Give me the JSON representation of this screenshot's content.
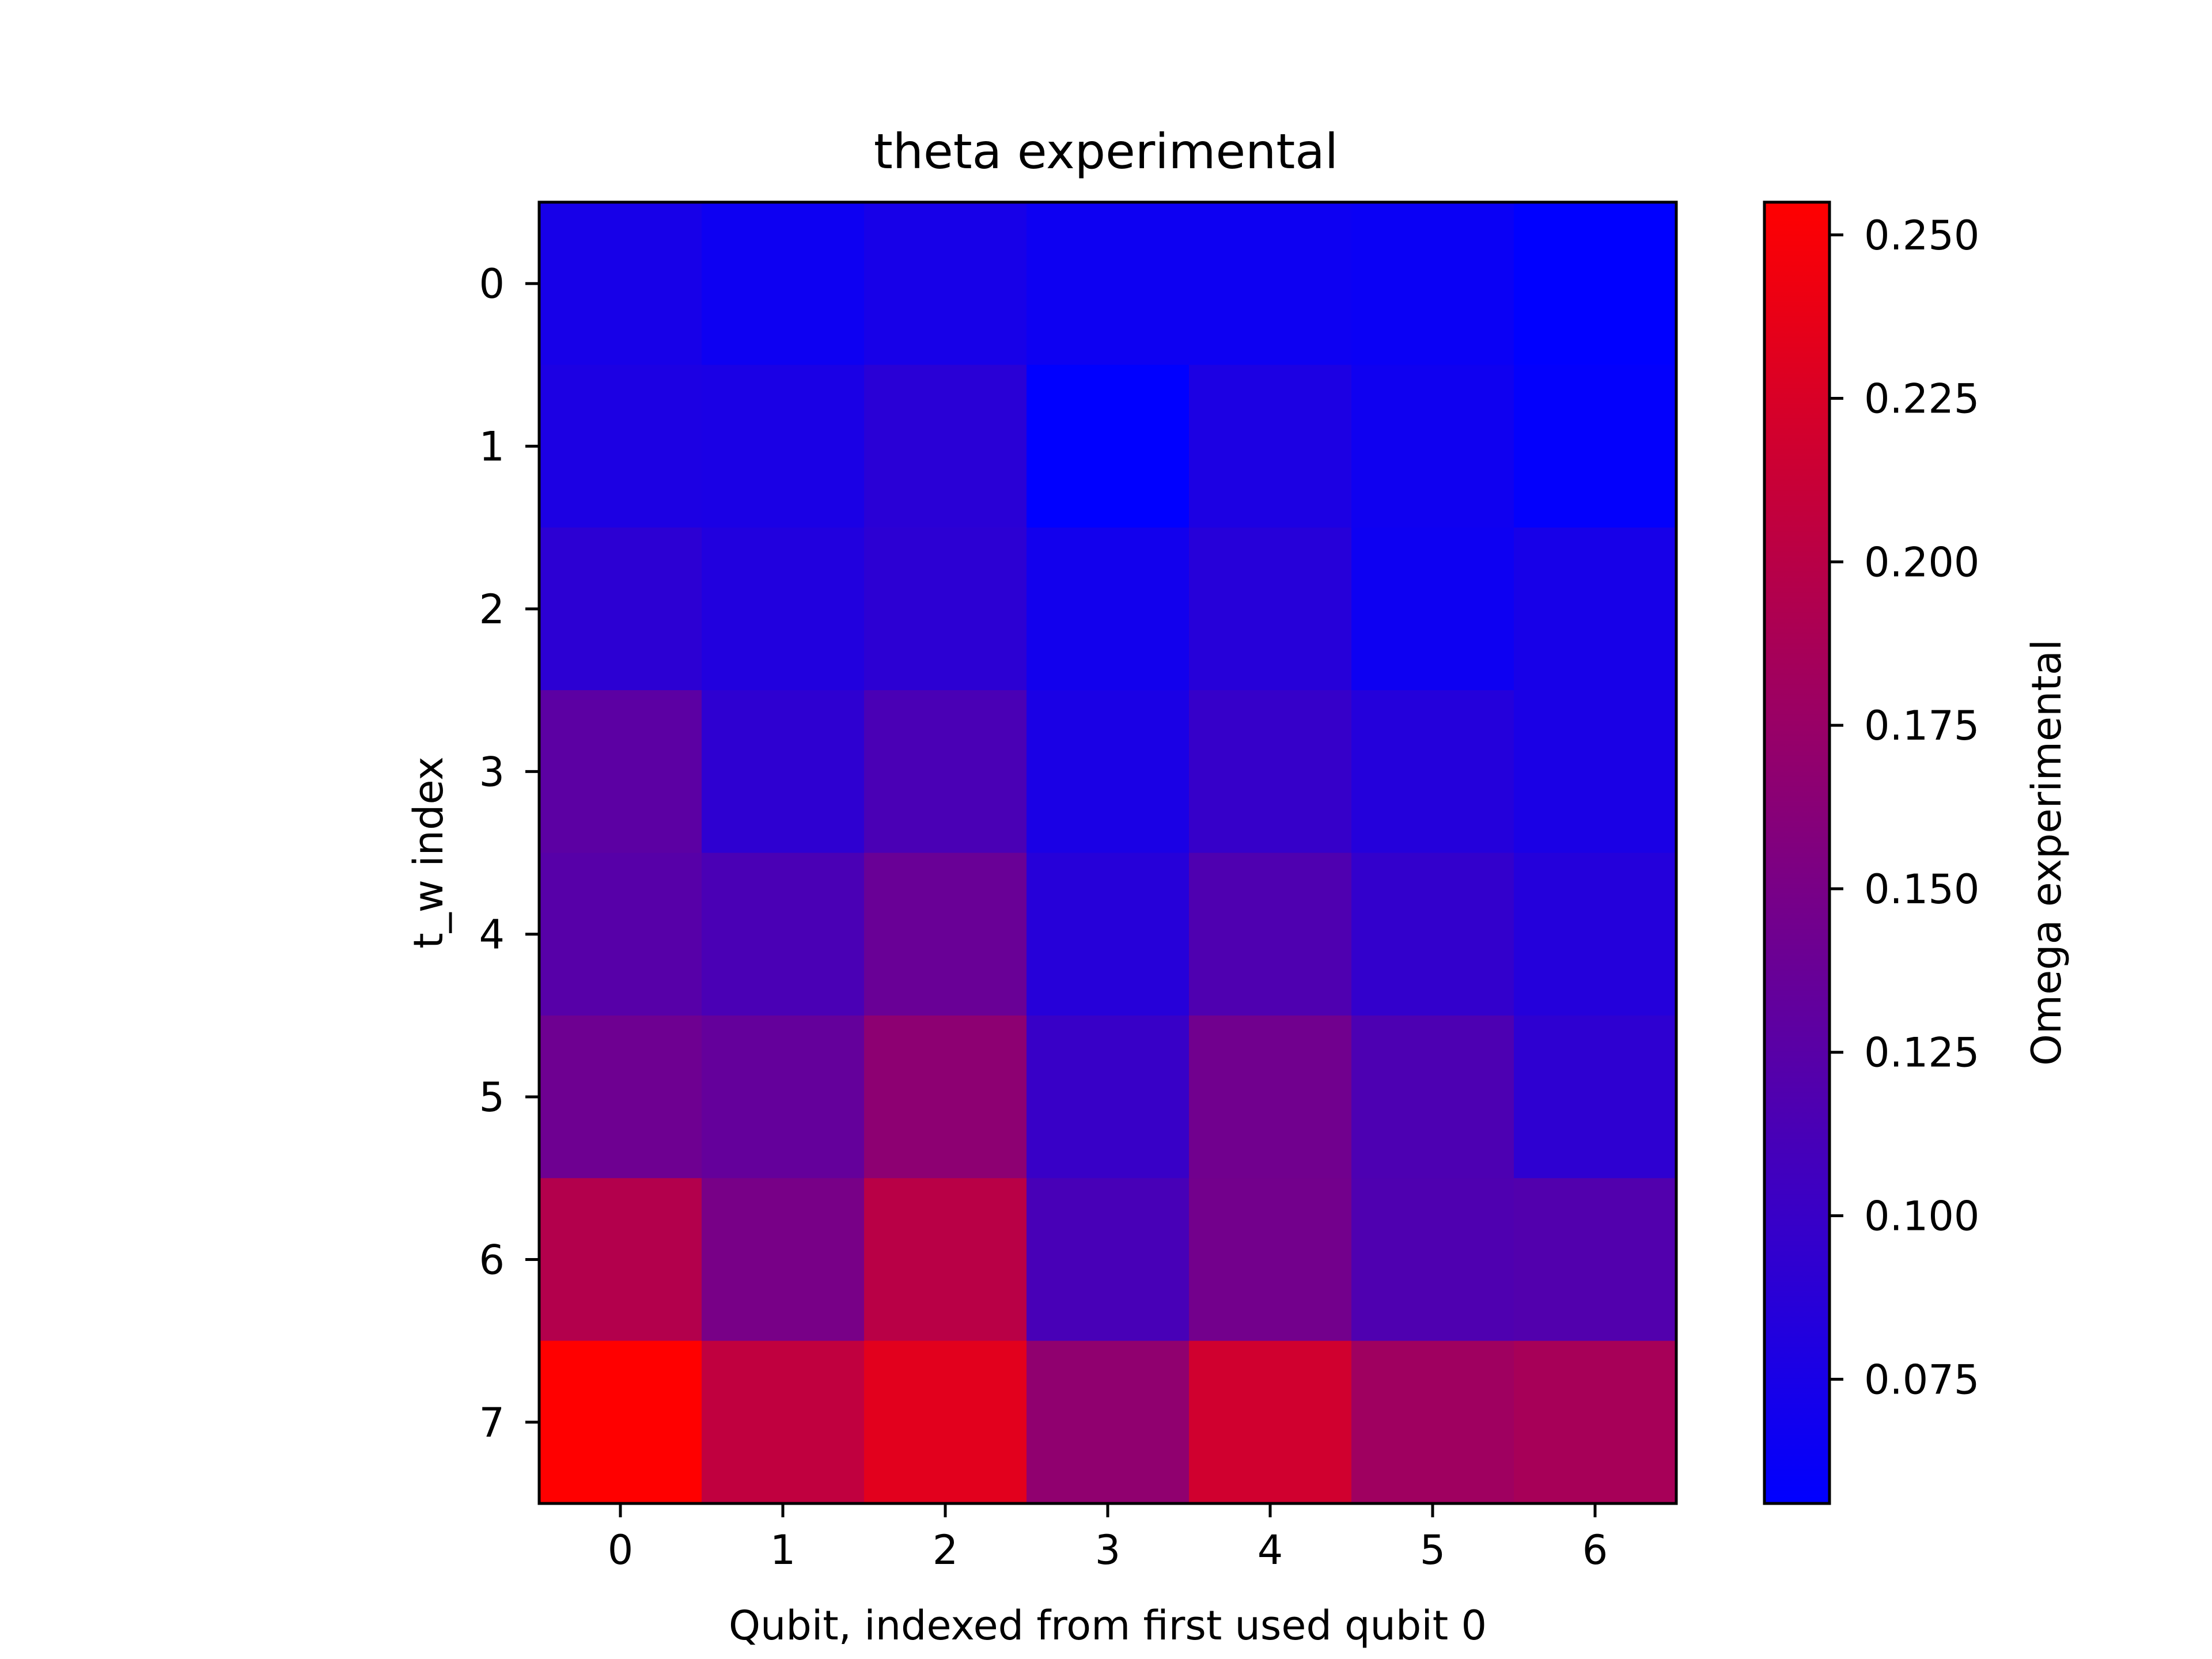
{
  "chart_data": {
    "type": "heatmap",
    "title": "theta experimental",
    "xlabel": "Qubit, indexed from first used qubit 0",
    "ylabel": "t_w index",
    "x_ticks": [
      "0",
      "1",
      "2",
      "3",
      "4",
      "5",
      "6"
    ],
    "y_ticks": [
      "0",
      "1",
      "2",
      "3",
      "4",
      "5",
      "6",
      "7"
    ],
    "colorbar": {
      "label": "Omega experimental",
      "range": [
        0.056,
        0.255
      ],
      "ticks": [
        "0.075",
        "0.100",
        "0.125",
        "0.150",
        "0.175",
        "0.200",
        "0.225",
        "0.250"
      ],
      "tick_values": [
        0.075,
        0.1,
        0.125,
        0.15,
        0.175,
        0.2,
        0.225,
        0.25
      ],
      "colormap": [
        "#0000ff",
        "#ff0000"
      ]
    },
    "values": [
      [
        0.074,
        0.066,
        0.074,
        0.066,
        0.066,
        0.064,
        0.056
      ],
      [
        0.078,
        0.076,
        0.088,
        0.056,
        0.078,
        0.068,
        0.058
      ],
      [
        0.09,
        0.082,
        0.09,
        0.07,
        0.086,
        0.066,
        0.074
      ],
      [
        0.128,
        0.092,
        0.114,
        0.076,
        0.098,
        0.084,
        0.076
      ],
      [
        0.124,
        0.114,
        0.138,
        0.086,
        0.118,
        0.096,
        0.084
      ],
      [
        0.142,
        0.134,
        0.166,
        0.1,
        0.144,
        0.116,
        0.092
      ],
      [
        0.196,
        0.15,
        0.2,
        0.112,
        0.146,
        0.118,
        0.12
      ],
      [
        0.255,
        0.206,
        0.232,
        0.168,
        0.218,
        0.18,
        0.186
      ]
    ]
  }
}
